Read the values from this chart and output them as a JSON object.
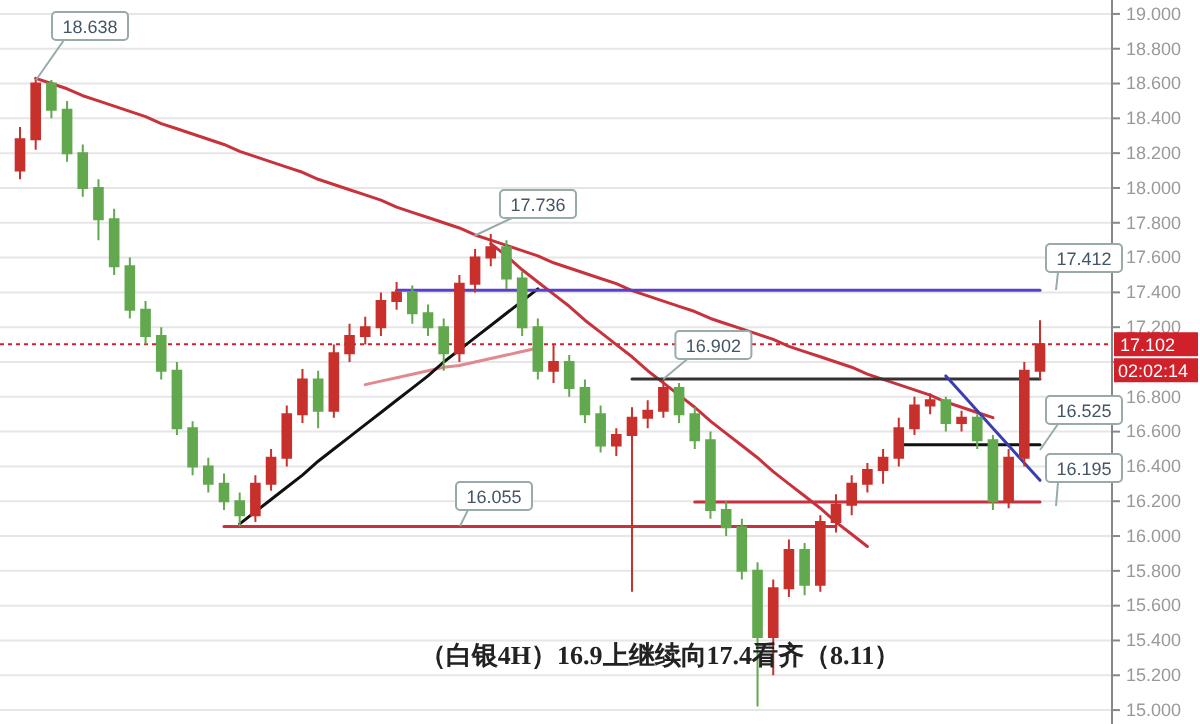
{
  "chart_data": {
    "type": "candlestick",
    "title": "（白银4H）16.9上继续向17.4看齐（8.11）",
    "categories": [
      null,
      null,
      null,
      null,
      null,
      null,
      null,
      null,
      null,
      null,
      null,
      null,
      null,
      null,
      null,
      null,
      null,
      null,
      null,
      null,
      null,
      null,
      null,
      null,
      null,
      null,
      null,
      null,
      null,
      null,
      null,
      null,
      null,
      null,
      null,
      null,
      null,
      null,
      null,
      null,
      null,
      null,
      null,
      null,
      null,
      null,
      null,
      null,
      null,
      null,
      null,
      null,
      null,
      null,
      null,
      null,
      null,
      null,
      null,
      null,
      null,
      null,
      null,
      null,
      null,
      null
    ],
    "ohlc": [
      [
        18.1,
        18.35,
        18.05,
        18.28
      ],
      [
        18.28,
        18.638,
        18.22,
        18.6
      ],
      [
        18.6,
        18.62,
        18.4,
        18.45
      ],
      [
        18.45,
        18.5,
        18.15,
        18.2
      ],
      [
        18.2,
        18.25,
        17.95,
        18.0
      ],
      [
        18.0,
        18.05,
        17.7,
        17.82
      ],
      [
        17.82,
        17.88,
        17.5,
        17.55
      ],
      [
        17.55,
        17.6,
        17.25,
        17.3
      ],
      [
        17.3,
        17.35,
        17.1,
        17.15
      ],
      [
        17.15,
        17.2,
        16.9,
        16.95
      ],
      [
        16.95,
        17.0,
        16.58,
        16.62
      ],
      [
        16.62,
        16.66,
        16.35,
        16.4
      ],
      [
        16.4,
        16.45,
        16.25,
        16.3
      ],
      [
        16.3,
        16.36,
        16.15,
        16.2
      ],
      [
        16.2,
        16.25,
        16.055,
        16.12
      ],
      [
        16.12,
        16.35,
        16.08,
        16.3
      ],
      [
        16.3,
        16.5,
        16.26,
        16.45
      ],
      [
        16.45,
        16.75,
        16.4,
        16.7
      ],
      [
        16.7,
        16.96,
        16.65,
        16.9
      ],
      [
        16.9,
        16.95,
        16.62,
        16.72
      ],
      [
        16.72,
        17.1,
        16.68,
        17.05
      ],
      [
        17.05,
        17.22,
        17.0,
        17.15
      ],
      [
        17.15,
        17.26,
        17.1,
        17.2
      ],
      [
        17.2,
        17.4,
        17.15,
        17.35
      ],
      [
        17.35,
        17.46,
        17.3,
        17.4
      ],
      [
        17.4,
        17.44,
        17.22,
        17.28
      ],
      [
        17.28,
        17.33,
        17.15,
        17.2
      ],
      [
        17.2,
        17.25,
        16.95,
        17.05
      ],
      [
        17.05,
        17.5,
        17.0,
        17.45
      ],
      [
        17.45,
        17.65,
        17.4,
        17.6
      ],
      [
        17.6,
        17.736,
        17.55,
        17.66
      ],
      [
        17.66,
        17.7,
        17.42,
        17.48
      ],
      [
        17.48,
        17.52,
        17.15,
        17.2
      ],
      [
        17.2,
        17.25,
        16.9,
        16.95
      ],
      [
        16.95,
        17.1,
        16.88,
        17.0
      ],
      [
        17.0,
        17.04,
        16.8,
        16.85
      ],
      [
        16.85,
        16.9,
        16.65,
        16.7
      ],
      [
        16.7,
        16.75,
        16.48,
        16.52
      ],
      [
        16.52,
        16.62,
        16.46,
        16.58
      ],
      [
        16.58,
        16.74,
        15.68,
        16.68
      ],
      [
        16.68,
        16.78,
        16.62,
        16.72
      ],
      [
        16.72,
        16.902,
        16.68,
        16.85
      ],
      [
        16.85,
        16.88,
        16.65,
        16.7
      ],
      [
        16.7,
        16.74,
        16.5,
        16.55
      ],
      [
        16.55,
        16.6,
        16.1,
        16.15
      ],
      [
        16.15,
        16.2,
        16.0,
        16.05
      ],
      [
        16.05,
        16.1,
        15.75,
        15.8
      ],
      [
        15.8,
        15.85,
        15.02,
        15.42
      ],
      [
        15.42,
        15.75,
        15.2,
        15.7
      ],
      [
        15.7,
        15.98,
        15.65,
        15.92
      ],
      [
        15.92,
        15.96,
        15.66,
        15.72
      ],
      [
        15.72,
        16.12,
        15.68,
        16.08
      ],
      [
        16.08,
        16.24,
        16.02,
        16.18
      ],
      [
        16.18,
        16.35,
        16.12,
        16.3
      ],
      [
        16.3,
        16.42,
        16.25,
        16.38
      ],
      [
        16.38,
        16.5,
        16.3,
        16.45
      ],
      [
        16.45,
        16.68,
        16.4,
        16.62
      ],
      [
        16.62,
        16.8,
        16.58,
        16.75
      ],
      [
        16.75,
        16.82,
        16.7,
        16.78
      ],
      [
        16.78,
        16.8,
        16.6,
        16.65
      ],
      [
        16.65,
        16.72,
        16.6,
        16.68
      ],
      [
        16.68,
        16.7,
        16.5,
        16.55
      ],
      [
        16.55,
        16.58,
        16.15,
        16.2
      ],
      [
        16.2,
        16.5,
        16.16,
        16.45
      ],
      [
        16.45,
        17.0,
        16.4,
        16.95
      ],
      [
        16.95,
        17.24,
        16.9,
        17.102
      ]
    ],
    "series": [
      {
        "type": "line",
        "color": "#c8323c",
        "values": [
          null,
          18.63,
          18.6,
          18.57,
          18.53,
          18.5,
          18.47,
          18.44,
          18.41,
          18.37,
          18.34,
          18.31,
          18.28,
          18.25,
          18.21,
          18.18,
          18.15,
          18.12,
          18.09,
          18.05,
          18.02,
          17.99,
          17.96,
          17.93,
          17.89,
          17.86,
          17.83,
          17.8,
          17.77,
          17.73,
          17.7,
          17.67,
          17.64,
          17.61,
          17.57,
          17.54,
          17.51,
          17.48,
          17.45,
          17.41,
          17.38,
          17.35,
          17.32,
          17.29,
          17.25,
          17.22,
          17.19,
          17.16,
          17.13,
          17.09,
          17.06,
          17.03,
          17.0,
          16.97,
          16.93,
          16.9,
          16.87,
          16.84,
          16.81,
          16.77,
          16.74,
          16.71,
          16.68,
          null,
          null,
          null
        ]
      },
      {
        "type": "line",
        "color": "#c8323c",
        "values": [
          null,
          null,
          null,
          null,
          null,
          null,
          null,
          null,
          null,
          null,
          null,
          null,
          null,
          null,
          null,
          null,
          null,
          null,
          null,
          null,
          null,
          null,
          null,
          null,
          null,
          null,
          null,
          null,
          null,
          null,
          17.68,
          17.61,
          17.53,
          17.46,
          17.39,
          17.32,
          17.24,
          17.17,
          17.1,
          17.03,
          16.95,
          16.88,
          16.81,
          16.74,
          16.66,
          16.59,
          16.52,
          16.45,
          16.37,
          16.3,
          16.23,
          16.16,
          16.08,
          16.01,
          15.94,
          null,
          null,
          null,
          null,
          null,
          null,
          null,
          null,
          null,
          null,
          null
        ]
      },
      {
        "type": "line",
        "color": "#c8323c",
        "values": [
          null,
          null,
          null,
          null,
          null,
          null,
          null,
          null,
          null,
          null,
          null,
          null,
          null,
          16.055,
          16.055,
          16.055,
          16.055,
          16.055,
          16.055,
          16.055,
          16.055,
          16.055,
          16.055,
          16.055,
          16.055,
          16.055,
          16.055,
          16.055,
          16.055,
          16.055,
          16.055,
          16.055,
          16.055,
          16.055,
          16.055,
          16.055,
          16.055,
          16.055,
          16.055,
          16.055,
          16.055,
          16.055,
          16.055,
          16.055,
          16.055,
          16.055,
          16.055,
          16.055,
          16.055,
          16.055,
          16.055,
          16.055,
          16.055,
          null,
          null,
          null,
          null,
          null,
          null,
          null,
          null,
          null,
          null,
          null,
          null,
          null
        ]
      },
      {
        "type": "line",
        "color": "#c8323c",
        "values": [
          null,
          null,
          null,
          null,
          null,
          null,
          null,
          null,
          null,
          null,
          null,
          null,
          null,
          null,
          null,
          null,
          null,
          null,
          null,
          null,
          null,
          null,
          null,
          null,
          null,
          null,
          null,
          null,
          null,
          null,
          null,
          null,
          null,
          null,
          null,
          null,
          null,
          null,
          null,
          null,
          null,
          null,
          null,
          16.195,
          16.195,
          16.195,
          16.195,
          16.195,
          16.195,
          16.195,
          16.195,
          16.195,
          16.195,
          16.195,
          16.195,
          16.195,
          16.195,
          16.195,
          16.195,
          16.195,
          16.195,
          16.195,
          16.195,
          16.195,
          16.195,
          16.195
        ]
      },
      {
        "type": "line",
        "color": "#e08a90",
        "values": [
          null,
          null,
          null,
          null,
          null,
          null,
          null,
          null,
          null,
          null,
          null,
          null,
          null,
          null,
          null,
          null,
          null,
          null,
          null,
          null,
          null,
          null,
          16.87,
          16.89,
          16.91,
          16.93,
          16.95,
          16.97,
          16.98,
          17.0,
          17.02,
          17.04,
          17.06,
          17.08,
          null,
          null,
          null,
          null,
          null,
          null,
          null,
          null,
          null,
          null,
          null,
          null,
          null,
          null,
          null,
          null,
          null,
          null,
          null,
          null,
          null,
          null,
          null,
          null,
          null,
          null,
          null,
          null,
          null,
          null,
          null,
          null
        ]
      },
      {
        "type": "line",
        "color": "#111111",
        "values": [
          null,
          null,
          null,
          null,
          null,
          null,
          null,
          null,
          null,
          null,
          null,
          null,
          null,
          null,
          16.07,
          16.14,
          16.21,
          16.28,
          16.35,
          16.43,
          16.5,
          16.57,
          16.64,
          16.71,
          16.78,
          16.85,
          16.92,
          17.0,
          17.07,
          17.14,
          17.21,
          17.28,
          17.35,
          17.42,
          null,
          null,
          null,
          null,
          null,
          null,
          null,
          null,
          null,
          null,
          null,
          null,
          null,
          null,
          null,
          null,
          null,
          null,
          null,
          null,
          null,
          null,
          null,
          null,
          null,
          null,
          null,
          null,
          null,
          null,
          null,
          null
        ]
      },
      {
        "type": "line",
        "color": "#333333",
        "values": [
          null,
          null,
          null,
          null,
          null,
          null,
          null,
          null,
          null,
          null,
          null,
          null,
          null,
          null,
          null,
          null,
          null,
          null,
          null,
          null,
          null,
          null,
          null,
          null,
          null,
          null,
          null,
          null,
          null,
          null,
          null,
          null,
          null,
          null,
          null,
          null,
          null,
          null,
          null,
          16.902,
          16.902,
          16.902,
          16.902,
          16.902,
          16.902,
          16.902,
          16.902,
          16.902,
          16.902,
          16.902,
          16.902,
          16.902,
          16.902,
          16.902,
          16.902,
          16.902,
          16.902,
          16.902,
          16.902,
          16.902,
          16.902,
          16.902,
          16.902,
          16.902,
          16.902,
          16.902
        ]
      },
      {
        "type": "line",
        "color": "#111111",
        "values": [
          null,
          null,
          null,
          null,
          null,
          null,
          null,
          null,
          null,
          null,
          null,
          null,
          null,
          null,
          null,
          null,
          null,
          null,
          null,
          null,
          null,
          null,
          null,
          null,
          null,
          null,
          null,
          null,
          null,
          null,
          null,
          null,
          null,
          null,
          null,
          null,
          null,
          null,
          null,
          null,
          null,
          null,
          null,
          null,
          null,
          null,
          null,
          null,
          null,
          null,
          null,
          null,
          null,
          null,
          null,
          null,
          16.525,
          16.525,
          16.525,
          16.525,
          16.525,
          16.525,
          16.525,
          16.525,
          16.525,
          16.525
        ]
      },
      {
        "type": "line",
        "color": "#5a3fc8",
        "values": [
          null,
          null,
          null,
          null,
          null,
          null,
          null,
          null,
          null,
          null,
          null,
          null,
          null,
          null,
          null,
          null,
          null,
          null,
          null,
          null,
          null,
          null,
          null,
          null,
          17.412,
          17.412,
          17.412,
          17.412,
          17.412,
          17.412,
          17.412,
          17.412,
          17.412,
          17.412,
          17.412,
          17.412,
          17.412,
          17.412,
          17.412,
          17.412,
          17.412,
          17.412,
          17.412,
          17.412,
          17.412,
          17.412,
          17.412,
          17.412,
          17.412,
          17.412,
          17.412,
          17.412,
          17.412,
          17.412,
          17.412,
          17.412,
          17.412,
          17.412,
          17.412,
          17.412,
          17.412,
          17.412,
          17.412,
          17.412,
          17.412,
          17.412
        ]
      },
      {
        "type": "line",
        "color": "#3a3fb0",
        "values": [
          null,
          null,
          null,
          null,
          null,
          null,
          null,
          null,
          null,
          null,
          null,
          null,
          null,
          null,
          null,
          null,
          null,
          null,
          null,
          null,
          null,
          null,
          null,
          null,
          null,
          null,
          null,
          null,
          null,
          null,
          null,
          null,
          null,
          null,
          null,
          null,
          null,
          null,
          null,
          null,
          null,
          null,
          null,
          null,
          null,
          null,
          null,
          null,
          null,
          null,
          null,
          null,
          null,
          null,
          null,
          null,
          null,
          null,
          null,
          16.92,
          16.82,
          16.72,
          16.62,
          16.52,
          16.42,
          16.32
        ]
      }
    ],
    "ylim": [
      14.92,
      19.08
    ],
    "yticks": [
      {
        "value": 15,
        "label": "15.000"
      },
      {
        "value": 15.2,
        "label": "15.200"
      },
      {
        "value": 15.4,
        "label": "15.400"
      },
      {
        "value": 15.6,
        "label": "15.600"
      },
      {
        "value": 15.8,
        "label": "15.800"
      },
      {
        "value": 16,
        "label": "16.000"
      },
      {
        "value": 16.2,
        "label": "16.200"
      },
      {
        "value": 16.4,
        "label": "16.400"
      },
      {
        "value": 16.6,
        "label": "16.600"
      },
      {
        "value": 16.8,
        "label": "16.800"
      },
      {
        "value": 17,
        "label": null
      },
      {
        "value": 17.2,
        "label": "17.200"
      },
      {
        "value": 17.4,
        "label": "17.400"
      },
      {
        "value": 17.6,
        "label": "17.600"
      },
      {
        "value": 17.8,
        "label": "17.800"
      },
      {
        "value": 18,
        "label": "18.000"
      },
      {
        "value": 18.2,
        "label": "18.200"
      },
      {
        "value": 18.4,
        "label": "18.400"
      },
      {
        "value": 18.6,
        "label": "18.600"
      },
      {
        "value": 18.8,
        "label": "18.800"
      },
      {
        "value": 19,
        "label": "19.000"
      }
    ],
    "tick_labels": "y",
    "grid": "y",
    "ref_lines": [
      {
        "axis": "y",
        "value": 17.102,
        "label": "17.102",
        "color": "#d0202a",
        "line_style": "dotted"
      }
    ],
    "annotations": [
      "18.638",
      "17.736",
      {
        "text": "16.902",
        "y": 16.902
      },
      "16.055",
      "17.412",
      "16.525",
      "16.195",
      "02:02:14"
    ]
  }
}
